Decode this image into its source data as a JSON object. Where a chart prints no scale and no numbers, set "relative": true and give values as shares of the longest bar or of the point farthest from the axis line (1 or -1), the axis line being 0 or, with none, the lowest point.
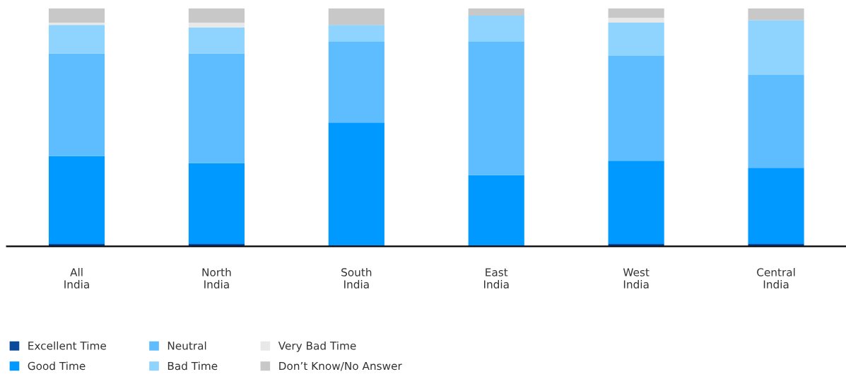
{
  "chart_data": {
    "type": "bar",
    "stacked": true,
    "relative": true,
    "categories": [
      "All\nIndia",
      "North\nIndia",
      "South\nIndia",
      "East\nIndia",
      "West\nIndia",
      "Central\nIndia"
    ],
    "series": [
      {
        "name": "Excellent Time",
        "color": "#0a4a9a",
        "values": [
          0.01,
          0.01,
          0,
          0,
          0.01,
          0.01
        ]
      },
      {
        "name": "Good Time",
        "color": "#0099ff",
        "values": [
          0.37,
          0.34,
          0.52,
          0.3,
          0.35,
          0.32
        ]
      },
      {
        "name": "Neutral",
        "color": "#5ebdff",
        "values": [
          0.43,
          0.46,
          0.34,
          0.56,
          0.44,
          0.39
        ]
      },
      {
        "name": "Bad Time",
        "color": "#8fd3ff",
        "values": [
          0.12,
          0.11,
          0.07,
          0.11,
          0.14,
          0.23
        ]
      },
      {
        "name": "Very Bad Time",
        "color": "#e8e8e8",
        "values": [
          0.01,
          0.02,
          0,
          0,
          0.02,
          0
        ]
      },
      {
        "name": "Don’t Know/No Answer",
        "color": "#c8c8c8",
        "values": [
          0.06,
          0.06,
          0.07,
          0.03,
          0.04,
          0.05
        ]
      }
    ],
    "legend": "bottom left",
    "grid": false
  }
}
